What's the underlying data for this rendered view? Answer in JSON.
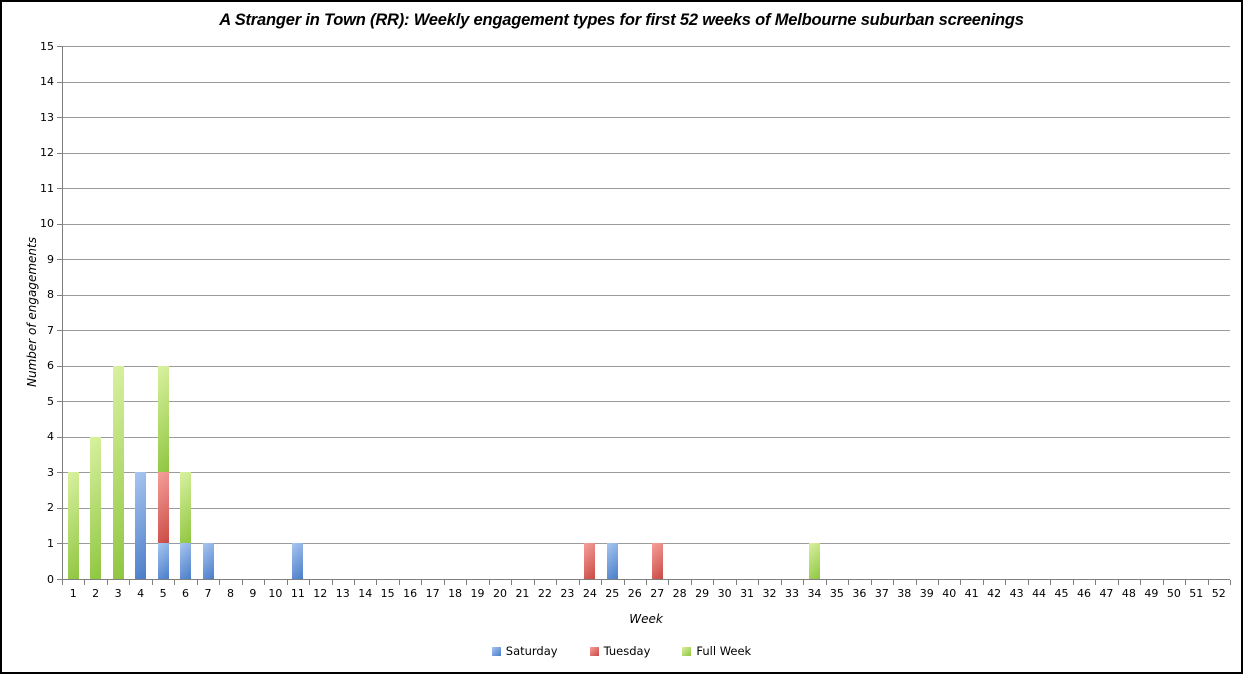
{
  "chart_data": {
    "type": "bar",
    "stacked": true,
    "title": "A Stranger in Town (RR): Weekly engagement types for first 52 weeks of Melbourne suburban screenings",
    "xlabel": "Week",
    "ylabel": "Number of engagements",
    "ylim": [
      0,
      15
    ],
    "y_tick_step": 1,
    "grid": "horizontal",
    "gridline_color": "#9b9b9b",
    "axis_color": "#808080",
    "legend_position": "bottom",
    "categories": [
      1,
      2,
      3,
      4,
      5,
      6,
      7,
      8,
      9,
      10,
      11,
      12,
      13,
      14,
      15,
      16,
      17,
      18,
      19,
      20,
      21,
      22,
      23,
      24,
      25,
      26,
      27,
      28,
      29,
      30,
      31,
      32,
      33,
      34,
      35,
      36,
      37,
      38,
      39,
      40,
      41,
      42,
      43,
      44,
      45,
      46,
      47,
      48,
      49,
      50,
      51,
      52
    ],
    "series": [
      {
        "name": "Saturday",
        "color": "#4A7DC9",
        "color_light": "#A8C6F0",
        "values": [
          0,
          0,
          0,
          3,
          1,
          1,
          1,
          0,
          0,
          0,
          1,
          0,
          0,
          0,
          0,
          0,
          0,
          0,
          0,
          0,
          0,
          0,
          0,
          0,
          1,
          0,
          0,
          0,
          0,
          0,
          0,
          0,
          0,
          0,
          0,
          0,
          0,
          0,
          0,
          0,
          0,
          0,
          0,
          0,
          0,
          0,
          0,
          0,
          0,
          0,
          0,
          0
        ]
      },
      {
        "name": "Tuesday",
        "color": "#CB4A44",
        "color_light": "#F5A09B",
        "values": [
          0,
          0,
          0,
          0,
          2,
          0,
          0,
          0,
          0,
          0,
          0,
          0,
          0,
          0,
          0,
          0,
          0,
          0,
          0,
          0,
          0,
          0,
          0,
          1,
          0,
          0,
          1,
          0,
          0,
          0,
          0,
          0,
          0,
          0,
          0,
          0,
          0,
          0,
          0,
          0,
          0,
          0,
          0,
          0,
          0,
          0,
          0,
          0,
          0,
          0,
          0,
          0
        ]
      },
      {
        "name": "Full Week",
        "color": "#8FC640",
        "color_light": "#D9F1A0",
        "values": [
          3,
          4,
          6,
          0,
          3,
          2,
          0,
          0,
          0,
          0,
          0,
          0,
          0,
          0,
          0,
          0,
          0,
          0,
          0,
          0,
          0,
          0,
          0,
          0,
          0,
          0,
          0,
          0,
          0,
          0,
          0,
          0,
          0,
          1,
          0,
          0,
          0,
          0,
          0,
          0,
          0,
          0,
          0,
          0,
          0,
          0,
          0,
          0,
          0,
          0,
          0,
          0
        ]
      }
    ]
  }
}
